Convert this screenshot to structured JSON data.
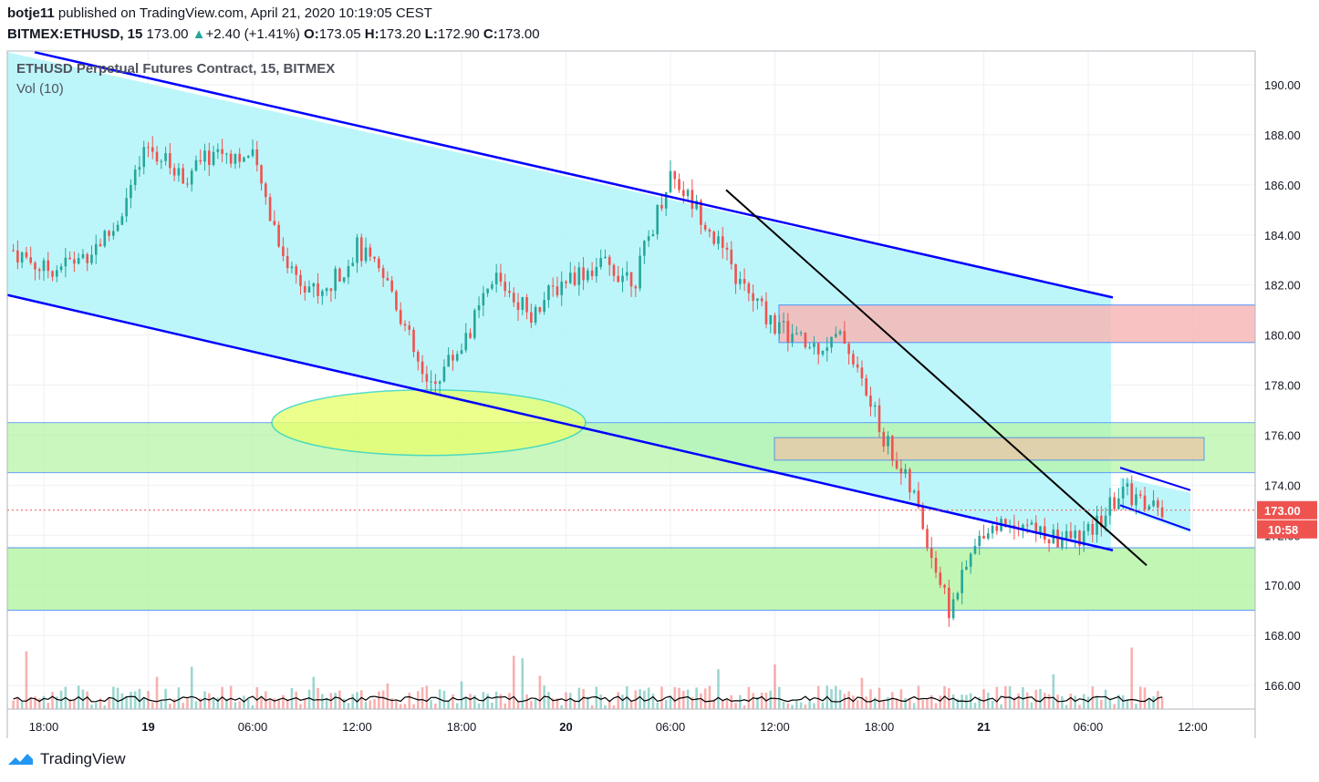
{
  "header": {
    "author": "botje11",
    "published_text": "published on TradingView.com, April 21, 2020 10:19:05 CEST",
    "symbol": "BITMEX:ETHUSD, 15",
    "last": "173.00",
    "change_arrow": "▲",
    "change": "+2.40 (+1.41%)",
    "o_label": "O:",
    "o_value": "173.05",
    "h_label": "H:",
    "h_value": "173.20",
    "l_label": "L:",
    "l_value": "172.90",
    "c_label": "C:",
    "c_value": "173.00"
  },
  "legend": {
    "title": "ETHUSD Perpetual Futures Contract, 15, BITMEX",
    "indicator": "Vol (10)"
  },
  "footer": {
    "brand": "TradingView",
    "logo_icon": "tradingview-logo-icon"
  },
  "price_tag": {
    "price": "173.00",
    "countdown": "10:58"
  },
  "colors": {
    "up": "#26a69a",
    "down": "#ef5350",
    "channel": "#0000ff",
    "channel_fill": "#b2f5f9",
    "support_fill": "#b7f5a8",
    "resistance_fill": "#f7b8b8",
    "ellipse_fill": "#e8ff70"
  },
  "chart_data": {
    "type": "candlestick",
    "ylim": [
      165,
      191
    ],
    "y_ticks": [
      "190.00",
      "188.00",
      "186.00",
      "184.00",
      "182.00",
      "180.00",
      "178.00",
      "176.00",
      "174.00",
      "172.00",
      "170.00",
      "168.00",
      "166.00"
    ],
    "x_ticks": [
      "18:00",
      "19",
      "06:00",
      "12:00",
      "18:00",
      "20",
      "06:00",
      "12:00",
      "18:00",
      "21",
      "06:00",
      "12:00"
    ],
    "close_series": [
      {
        "time": "Apr 18 16:00",
        "close": 183.5
      },
      {
        "time": "Apr 18 18:00",
        "close": 182.6
      },
      {
        "time": "Apr 18 20:00",
        "close": 183.0
      },
      {
        "time": "Apr 18 22:00",
        "close": 184.2
      },
      {
        "time": "Apr 19 00:00",
        "close": 187.5
      },
      {
        "time": "Apr 19 02:00",
        "close": 186.3
      },
      {
        "time": "Apr 19 04:00",
        "close": 187.4
      },
      {
        "time": "Apr 19 06:00",
        "close": 187.0
      },
      {
        "time": "Apr 19 08:00",
        "close": 182.8
      },
      {
        "time": "Apr 19 10:00",
        "close": 181.5
      },
      {
        "time": "Apr 19 12:00",
        "close": 183.5
      },
      {
        "time": "Apr 19 14:00",
        "close": 181.8
      },
      {
        "time": "Apr 19 16:00",
        "close": 177.8
      },
      {
        "time": "Apr 19 18:00",
        "close": 179.6
      },
      {
        "time": "Apr 19 20:00",
        "close": 182.3
      },
      {
        "time": "Apr 19 22:00",
        "close": 180.9
      },
      {
        "time": "Apr 20 00:00",
        "close": 182.3
      },
      {
        "time": "Apr 20 02:00",
        "close": 182.8
      },
      {
        "time": "Apr 20 04:00",
        "close": 182.3
      },
      {
        "time": "Apr 20 06:00",
        "close": 186.5
      },
      {
        "time": "Apr 20 08:00",
        "close": 184.6
      },
      {
        "time": "Apr 20 10:00",
        "close": 182.0
      },
      {
        "time": "Apr 20 12:00",
        "close": 180.4
      },
      {
        "time": "Apr 20 14:00",
        "close": 179.5
      },
      {
        "time": "Apr 20 16:00",
        "close": 179.9
      },
      {
        "time": "Apr 20 18:00",
        "close": 176.3
      },
      {
        "time": "Apr 20 20:00",
        "close": 173.5
      },
      {
        "time": "Apr 20 22:00",
        "close": 169.0
      },
      {
        "time": "Apr 21 00:00",
        "close": 172.3
      },
      {
        "time": "Apr 21 02:00",
        "close": 172.6
      },
      {
        "time": "Apr 21 04:00",
        "close": 171.8
      },
      {
        "time": "Apr 21 06:00",
        "close": 172.0
      },
      {
        "time": "Apr 21 08:00",
        "close": 173.8
      },
      {
        "time": "Apr 21 10:00",
        "close": 173.0
      }
    ],
    "drawings": {
      "descending_channel": "blue parallel lines",
      "zones": [
        "support 174.5-176.5",
        "support 169-171.5",
        "resistance 179.7-181.2",
        "zone 175-175.8"
      ],
      "trendline": "black descending",
      "ellipse": "yellow highlight near 176.5"
    }
  }
}
